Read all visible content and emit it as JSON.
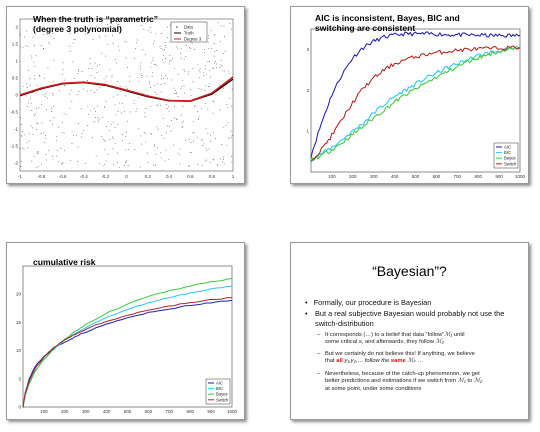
{
  "slides": [
    {
      "title_lines": [
        "When the truth is “parametric”",
        "(degree 3 polynomial)"
      ],
      "chart_data": {
        "type": "scatter",
        "title": "",
        "xlim": [
          -1,
          1
        ],
        "ylim": [
          -2.2,
          2.2
        ],
        "xticks": [
          "-1",
          "-0.8",
          "-0.6",
          "-0.4",
          "-0.2",
          "0",
          "0.2",
          "0.4",
          "0.6",
          "0.8",
          "1"
        ],
        "yticks": [
          "2",
          "1.5",
          "1",
          "0.5",
          "0",
          "-0.5",
          "-1",
          "-1.5",
          "-2"
        ],
        "legend": [
          "Data",
          "Truth",
          "Degree 3"
        ],
        "legend_position": "top-right",
        "series": [
          {
            "name": "Data",
            "style": "points",
            "color": "#444444"
          },
          {
            "name": "Truth",
            "style": "line",
            "color": "#000000",
            "x": [
              -1,
              -0.8,
              -0.6,
              -0.4,
              -0.2,
              0,
              0.2,
              0.4,
              0.6,
              0.8,
              1
            ],
            "y": [
              -0.02,
              0.18,
              0.32,
              0.36,
              0.28,
              0.12,
              -0.05,
              -0.17,
              -0.18,
              0.02,
              0.46
            ]
          },
          {
            "name": "Degree 3",
            "style": "line",
            "color": "#d11a1a",
            "x": [
              -1,
              -0.8,
              -0.6,
              -0.4,
              -0.2,
              0,
              0.2,
              0.4,
              0.6,
              0.8,
              1
            ],
            "y": [
              0.0,
              0.2,
              0.34,
              0.37,
              0.3,
              0.14,
              -0.03,
              -0.16,
              -0.17,
              0.05,
              0.52
            ]
          }
        ]
      }
    },
    {
      "title_lines": [
        "AIC is inconsistent, Bayes, BIC and",
        "switching are consistent"
      ],
      "chart_data": {
        "type": "line",
        "title": "",
        "xlim": [
          0,
          1000
        ],
        "ylim": [
          0,
          3.5
        ],
        "xticks": [
          "100",
          "200",
          "300",
          "400",
          "500",
          "600",
          "700",
          "800",
          "900",
          "1000"
        ],
        "yticks": [
          "3",
          "2",
          "1"
        ],
        "legend": [
          "AIC",
          "BIC",
          "Bayes",
          "Switch"
        ],
        "legend_position": "bottom-right",
        "x": [
          0,
          50,
          100,
          150,
          200,
          250,
          300,
          350,
          400,
          450,
          500,
          550,
          600,
          650,
          700,
          750,
          800,
          850,
          900,
          950,
          1000
        ],
        "series": [
          {
            "name": "AIC",
            "color": "#1f1fb0",
            "values": [
              0.4,
              1.2,
              1.9,
              2.4,
              2.8,
              3.05,
              3.2,
              3.3,
              3.35,
              3.38,
              3.38,
              3.38,
              3.38,
              3.36,
              3.36,
              3.35,
              3.35,
              3.34,
              3.34,
              3.34,
              3.34
            ]
          },
          {
            "name": "BIC",
            "color": "#22c8ee",
            "values": [
              0.3,
              0.45,
              0.6,
              0.8,
              1.0,
              1.2,
              1.45,
              1.65,
              1.85,
              2.0,
              2.15,
              2.3,
              2.42,
              2.55,
              2.65,
              2.75,
              2.85,
              2.92,
              2.97,
              3.0,
              3.02
            ]
          },
          {
            "name": "Bayes",
            "color": "#3cc83c",
            "values": [
              0.3,
              0.4,
              0.55,
              0.72,
              0.92,
              1.12,
              1.33,
              1.52,
              1.72,
              1.88,
              2.03,
              2.18,
              2.32,
              2.45,
              2.58,
              2.7,
              2.8,
              2.88,
              2.95,
              3.0,
              3.03
            ]
          },
          {
            "name": "Switch",
            "color": "#b82020",
            "values": [
              0.3,
              0.55,
              0.9,
              1.3,
              1.7,
              2.05,
              2.3,
              2.5,
              2.65,
              2.75,
              2.82,
              2.88,
              2.92,
              2.95,
              2.98,
              3.0,
              3.01,
              3.02,
              3.03,
              3.04,
              3.05
            ]
          }
        ]
      }
    },
    {
      "title_lines": [
        "cumulative risk"
      ],
      "chart_data": {
        "type": "line",
        "title": "",
        "xlim": [
          0,
          1000
        ],
        "ylim": [
          0,
          25
        ],
        "xticks": [
          "100",
          "200",
          "300",
          "400",
          "500",
          "600",
          "700",
          "800",
          "900",
          "1000"
        ],
        "yticks": [
          "20",
          "15",
          "10",
          "5",
          "0"
        ],
        "legend": [
          "AIC",
          "BIC",
          "Bayes",
          "Switch"
        ],
        "legend_position": "bottom-right",
        "x": [
          0,
          10,
          30,
          60,
          100,
          150,
          200,
          250,
          300,
          400,
          500,
          600,
          700,
          800,
          900,
          1000
        ],
        "series": [
          {
            "name": "AIC",
            "color": "#1f1fb0",
            "values": [
              0,
              2.5,
              5,
              7.3,
              9,
              10.5,
              11.5,
              12.5,
              13.3,
              14.7,
              15.8,
              16.7,
              17.4,
              18.0,
              18.5,
              18.9
            ]
          },
          {
            "name": "BIC",
            "color": "#22c8ee",
            "values": [
              0,
              2,
              4.3,
              6.5,
              8.5,
              10.3,
              11.8,
              13.0,
              14.1,
              15.9,
              17.3,
              18.5,
              19.4,
              20.2,
              20.9,
              21.4
            ]
          },
          {
            "name": "Bayes",
            "color": "#3cc83c",
            "values": [
              0,
              2,
              4.2,
              6.4,
              8.4,
              10.4,
              12.0,
              13.4,
              14.6,
              16.6,
              18.2,
              19.6,
              20.6,
              21.5,
              22.2,
              22.8
            ]
          },
          {
            "name": "Switch",
            "color": "#b82020",
            "values": [
              0,
              2.2,
              4.6,
              6.9,
              8.8,
              10.6,
              11.9,
              12.9,
              13.8,
              15.2,
              16.3,
              17.2,
              17.9,
              18.5,
              19.0,
              19.4
            ]
          }
        ]
      }
    },
    {
      "title": "“Bayesian”?",
      "bullets": [
        "Formally, our procedure is Bayesian",
        "But a real subjective Bayesian would probably not use the switch-distribution"
      ],
      "subbullets": {
        "s1a": "It corresponds (…) to a belief that data “follow”",
        "s1a_m": "ℳ₁",
        "s1a_b": " until",
        "s1b": "some critical ",
        "s1b_m": "s",
        "s1b_c": ", and afterwards, they follow ",
        "s1b_m2": "ℳ₂",
        "s2a": "But we certainly do not believe this! If anything, we believe",
        "s2b_a": "that ",
        "s2b_r1": "all",
        "s2b_b": " y₁,y₂,… follow the ",
        "s2b_r2": "same",
        "s2b_c": " ℳₖ …",
        "s3a": "Nevertheless, because of the catch-up phenomenon, we get",
        "s3b_a": "better predictions and estimations if we switch from ",
        "s3b_m1": "ℳ₁",
        "s3b_b": " to ",
        "s3b_m2": "ℳ₂",
        "s3c": "at some point, under some conditions"
      }
    }
  ]
}
